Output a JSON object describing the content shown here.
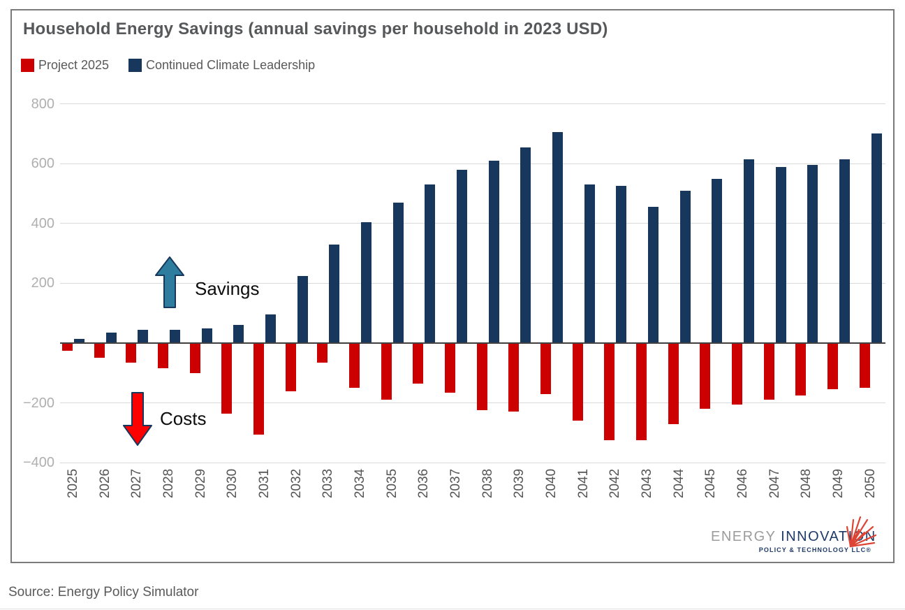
{
  "chart_data": {
    "type": "bar",
    "title": "Household Energy Savings (annual savings per household in 2023 USD)",
    "categories": [
      "2025",
      "2026",
      "2027",
      "2028",
      "2029",
      "2030",
      "2031",
      "2032",
      "2033",
      "2034",
      "2035",
      "2036",
      "2037",
      "2038",
      "2039",
      "2040",
      "2041",
      "2042",
      "2043",
      "2044",
      "2045",
      "2046",
      "2047",
      "2048",
      "2049",
      "2050"
    ],
    "series": [
      {
        "name": "Project 2025",
        "color": "#CC0000",
        "values": [
          -25,
          -50,
          -65,
          -85,
          -100,
          -235,
          -305,
          -160,
          -65,
          -150,
          -190,
          -135,
          -165,
          -225,
          -230,
          -170,
          -260,
          -325,
          -325,
          -270,
          -220,
          -205,
          -190,
          -175,
          -155,
          -150
        ]
      },
      {
        "name": "Continued Climate Leadership",
        "color": "#17375D",
        "values": [
          15,
          35,
          45,
          45,
          50,
          60,
          95,
          225,
          330,
          405,
          470,
          530,
          580,
          610,
          655,
          705,
          530,
          525,
          455,
          510,
          550,
          615,
          590,
          595,
          615,
          700
        ]
      }
    ],
    "ylim": [
      -400,
      800
    ],
    "yticks": [
      {
        "value": 800,
        "label": "800"
      },
      {
        "value": 600,
        "label": "600"
      },
      {
        "value": 400,
        "label": "400"
      },
      {
        "value": 200,
        "label": "200"
      },
      {
        "value": -200,
        "label": "−200"
      },
      {
        "value": -400,
        "label": "−400"
      }
    ],
    "grid": true,
    "legend_position": "top-left"
  },
  "annotations": {
    "savings": "Savings",
    "costs": "Costs",
    "savings_arrow_color": "#2E7D9F",
    "costs_arrow_color": "#FF0000",
    "arrow_outline_color": "#17375D"
  },
  "logo": {
    "word_gray": "ENERGY",
    "word_navy": "INNOVATION",
    "tagline": "POLICY & TECHNOLOGY LLC®",
    "gray_color": "#9c9c9c",
    "navy_color": "#1f3a68",
    "starburst_color": "#dd4433"
  },
  "source_line": "Source: Energy Policy Simulator"
}
